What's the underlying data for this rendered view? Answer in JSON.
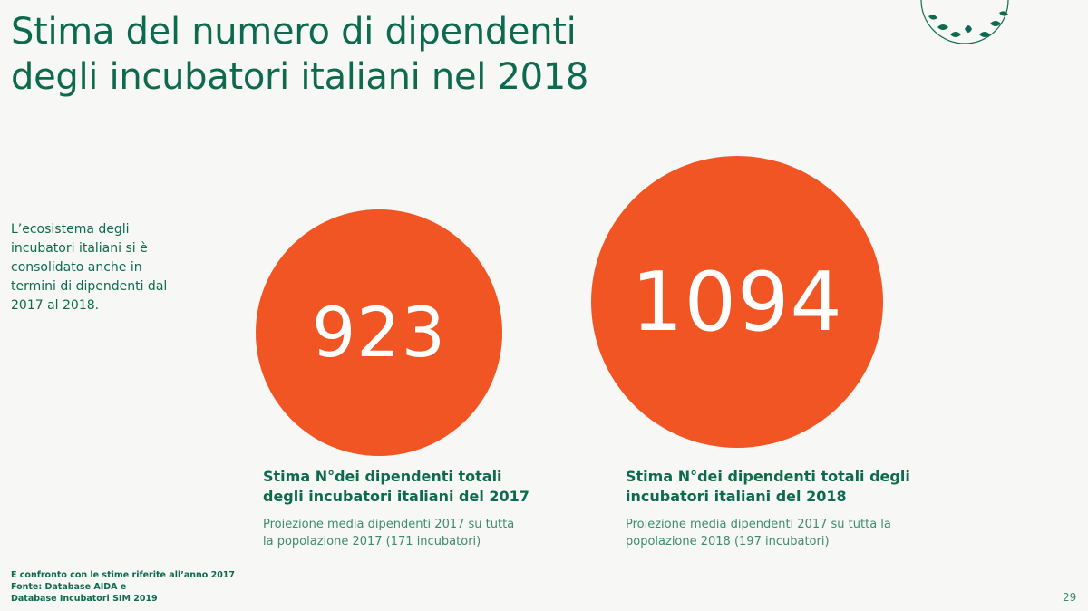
{
  "title_lines": [
    "Stima del numero di dipendenti",
    "degli incubatori italiani nel 2018"
  ],
  "intro_text": "L’ecosistema degli incubatori italiani si è consolidato anche in termini di dipendenti dal 2017 al 2018.",
  "chart_data": {
    "type": "bubble",
    "items": [
      {
        "value": 923,
        "label": "923",
        "caption_lines": [
          "Stima N°dei dipendenti totali",
          "degli  incubatori italiani del 2017"
        ],
        "note_lines": [
          "Proiezione media dipendenti 2017 su tutta",
          "la popolazione 2017 (171 incubatori)"
        ],
        "color": "#f15524"
      },
      {
        "value": 1094,
        "label": "1094",
        "caption_lines": [
          "Stima N°dei dipendenti totali degli",
          "incubatori italiani del 2018"
        ],
        "note_lines": [
          "Proiezione media dipendenti 2017 su tutta la",
          "popolazione 2018 (197 incubatori)"
        ],
        "color": "#f15524"
      }
    ]
  },
  "footnote_lines": [
    "E confronto con le stime riferite all’anno 2017",
    "Fonte: Database AIDA e",
    "Database Incubatori SIM 2019"
  ],
  "page_number": "29",
  "colors": {
    "title_green": "#0d6a4e",
    "bubble_orange": "#f15524",
    "background": "#f7f8f5"
  },
  "logo_icon": "leaf-wreath-logo-icon"
}
